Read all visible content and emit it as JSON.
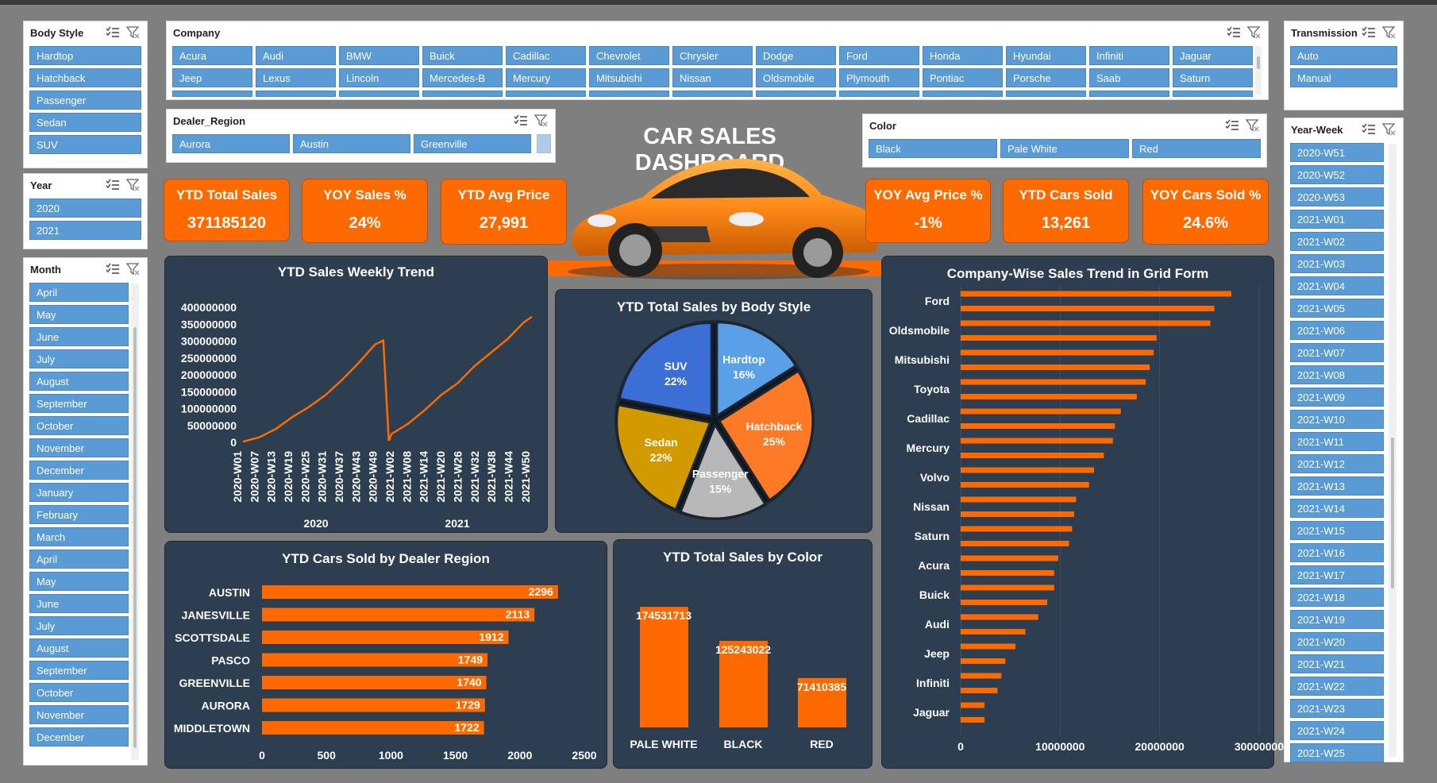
{
  "dashboard": {
    "title": "CAR SALES DASHBOARD"
  },
  "colors": {
    "accent": "#ff6a00",
    "panel": "#2c3e50",
    "slicer_button": "#5b9bd5"
  },
  "icons": {
    "multiselect": "multi-select-icon",
    "clear_filter": "clear-filter-icon"
  },
  "slicers": {
    "body_style": {
      "title": "Body Style",
      "items": [
        "Hardtop",
        "Hatchback",
        "Passenger",
        "Sedan",
        "SUV"
      ]
    },
    "year": {
      "title": "Year",
      "items": [
        "2020",
        "2021"
      ]
    },
    "month": {
      "title": "Month",
      "items": [
        "April",
        "May",
        "June",
        "July",
        "August",
        "September",
        "October",
        "November",
        "December",
        "January",
        "February",
        "March",
        "April",
        "May",
        "June",
        "July",
        "August",
        "September",
        "October",
        "November",
        "December"
      ]
    },
    "company": {
      "title": "Company",
      "items": [
        "Acura",
        "Audi",
        "BMW",
        "Buick",
        "Cadillac",
        "Chevrolet",
        "Chrysler",
        "Dodge",
        "Ford",
        "Honda",
        "Hyundai",
        "Infiniti",
        "Jaguar",
        "Jeep",
        "Lexus",
        "Lincoln",
        "Mercedes-B",
        "Mercury",
        "Mitsubishi",
        "Nissan",
        "Oldsmobile",
        "Plymouth",
        "Pontiac",
        "Porsche",
        "Saab",
        "Saturn"
      ]
    },
    "dealer_region": {
      "title": "Dealer_Region",
      "items": [
        "Aurora",
        "Austin",
        "Greenville"
      ]
    },
    "color": {
      "title": "Color",
      "items": [
        "Black",
        "Pale White",
        "Red"
      ]
    },
    "transmission": {
      "title": "Transmission",
      "items": [
        "Auto",
        "Manual"
      ]
    },
    "year_week": {
      "title": "Year-Week",
      "items": [
        "2020-W51",
        "2020-W52",
        "2020-W53",
        "2021-W01",
        "2021-W02",
        "2021-W03",
        "2021-W04",
        "2021-W05",
        "2021-W06",
        "2021-W07",
        "2021-W08",
        "2021-W09",
        "2021-W10",
        "2021-W11",
        "2021-W12",
        "2021-W13",
        "2021-W14",
        "2021-W15",
        "2021-W16",
        "2021-W17",
        "2021-W18",
        "2021-W19",
        "2021-W20",
        "2021-W21",
        "2021-W22",
        "2021-W23",
        "2021-W24",
        "2021-W25"
      ]
    }
  },
  "kpis": [
    {
      "title": "YTD Total Sales",
      "value": "371185120"
    },
    {
      "title": "YOY Sales %",
      "value": "24%"
    },
    {
      "title": "YTD Avg Price",
      "value": "27,991"
    },
    {
      "title": "YOY Avg Price %",
      "value": "-1%"
    },
    {
      "title": "YTD Cars Sold",
      "value": "13,261"
    },
    {
      "title": "YOY Cars Sold %",
      "value": "24.6%"
    }
  ],
  "chart_data": [
    {
      "type": "line",
      "title": "YTD Sales Weekly Trend",
      "x_ticks": [
        "2020-W01",
        "2020-W07",
        "2020-W13",
        "2020-W19",
        "2020-W25",
        "2020-W31",
        "2020-W37",
        "2020-W43",
        "2020-W49",
        "2021-W02",
        "2021-W08",
        "2021-W14",
        "2021-W20",
        "2021-W26",
        "2021-W32",
        "2021-W38",
        "2021-W44",
        "2021-W50"
      ],
      "x_groups": [
        "2020",
        "2021"
      ],
      "y_ticks": [
        "400000000",
        "350000000",
        "300000000",
        "250000000",
        "200000000",
        "150000000",
        "100000000",
        "50000000",
        "0"
      ],
      "ylim": [
        0,
        400000000
      ],
      "series": [
        {
          "x": [
            "2020-W01",
            "2020-W07",
            "2020-W13",
            "2020-W19",
            "2020-W25",
            "2020-W31",
            "2020-W37",
            "2020-W43",
            "2020-W49",
            "2020-W52",
            "2021-W01",
            "2021-W02",
            "2021-W08",
            "2021-W14",
            "2021-W20",
            "2021-W26",
            "2021-W32",
            "2021-W38",
            "2021-W44",
            "2021-W50",
            "2021-W53"
          ],
          "values": [
            2000000,
            15000000,
            40000000,
            75000000,
            105000000,
            140000000,
            185000000,
            235000000,
            290000000,
            302000000,
            5000000,
            25000000,
            55000000,
            95000000,
            140000000,
            175000000,
            225000000,
            265000000,
            305000000,
            355000000,
            372000000
          ]
        }
      ]
    },
    {
      "type": "pie",
      "title": "YTD Total Sales by Body Style",
      "labels": [
        "Hardtop",
        "Hatchback",
        "Passenger",
        "Sedan",
        "SUV"
      ],
      "values": [
        16,
        25,
        15,
        22,
        22
      ],
      "value_labels": [
        "16%",
        "25%",
        "15%",
        "22%",
        "22%"
      ],
      "colors": [
        "#5aa0e6",
        "#ff7a26",
        "#b8b8b8",
        "#d39a00",
        "#3b6fd6"
      ]
    },
    {
      "type": "bar",
      "orientation": "horizontal",
      "title": "YTD Cars Sold by Dealer Region",
      "categories": [
        "AUSTIN",
        "JANESVILLE",
        "SCOTTSDALE",
        "PASCO",
        "GREENVILLE",
        "AURORA",
        "MIDDLETOWN"
      ],
      "values": [
        2296,
        2113,
        1912,
        1749,
        1740,
        1729,
        1722
      ],
      "x_ticks": [
        "0",
        "500",
        "1000",
        "1500",
        "2000",
        "2500"
      ],
      "xlim": [
        0,
        2500
      ]
    },
    {
      "type": "bar",
      "title": "YTD Total Sales by Color",
      "categories": [
        "PALE WHITE",
        "BLACK",
        "RED"
      ],
      "values": [
        174531713,
        125243022,
        71410385
      ],
      "ylim": [
        0,
        200000000
      ]
    },
    {
      "type": "bar",
      "orientation": "horizontal",
      "title": "Company-Wise Sales Trend in Grid Form",
      "labels_shown": [
        "Ford",
        "Oldsmobile",
        "Mitsubishi",
        "Toyota",
        "Cadillac",
        "Mercury",
        "Volvo",
        "Nissan",
        "Saturn",
        "Acura",
        "Buick",
        "Audi",
        "Jeep",
        "Infiniti",
        "Jaguar"
      ],
      "values": [
        27200000,
        25500000,
        25100000,
        19700000,
        19400000,
        19000000,
        18600000,
        17700000,
        16100000,
        15500000,
        15300000,
        14400000,
        13400000,
        12900000,
        11600000,
        11400000,
        11200000,
        10900000,
        9800000,
        9400000,
        9400000,
        8700000,
        7800000,
        6500000,
        5500000,
        4500000,
        4100000,
        3700000,
        2400000,
        2400000
      ],
      "x_ticks": [
        "0",
        "10000000",
        "20000000",
        "30000000"
      ],
      "xlim": [
        0,
        30000000
      ]
    }
  ]
}
